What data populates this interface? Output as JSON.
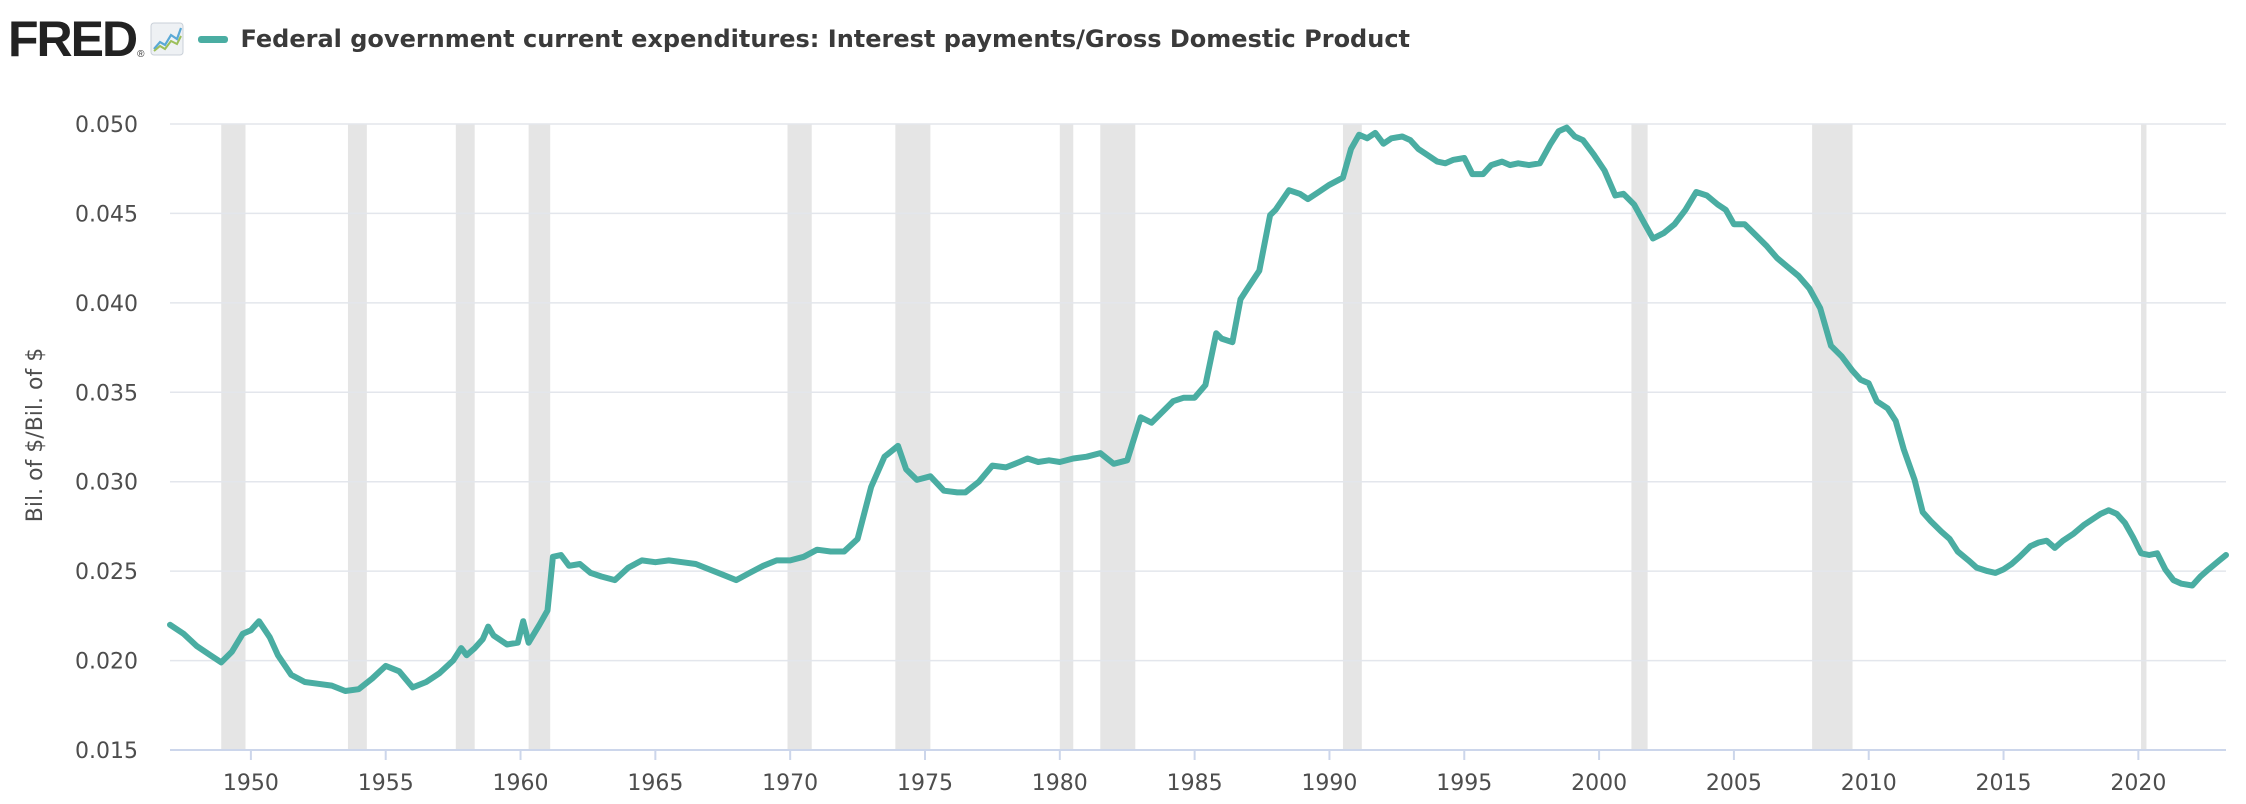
{
  "header": {
    "logo_text": "FRED",
    "logo_mark": "®",
    "logo_icon": "line-chart-icon"
  },
  "chart_data": {
    "type": "line",
    "title": "Federal government current expenditures: Interest payments/Gross Domestic Product",
    "ylabel": "Bil. of $/Bil. of $",
    "xlabel": "",
    "xlim": [
      1947,
      2023.25
    ],
    "ylim": [
      0.015,
      0.05
    ],
    "x_ticks": [
      1950,
      1955,
      1960,
      1965,
      1970,
      1975,
      1980,
      1985,
      1990,
      1995,
      2000,
      2005,
      2010,
      2015,
      2020
    ],
    "y_ticks": [
      "0.015",
      "0.020",
      "0.025",
      "0.030",
      "0.035",
      "0.040",
      "0.045",
      "0.050"
    ],
    "grid": "horizontal",
    "legend_placement": "top-left",
    "colors": {
      "series": "#4aada2",
      "recession": "#e5e5e5",
      "grid": "#e3e6ec",
      "axis": "#ccd6eb",
      "tick_text": "#4d4d4d"
    },
    "recessions": [
      [
        1948.9,
        1949.8
      ],
      [
        1953.6,
        1954.3
      ],
      [
        1957.6,
        1958.3
      ],
      [
        1960.3,
        1961.1
      ],
      [
        1969.9,
        1970.8
      ],
      [
        1973.9,
        1975.2
      ],
      [
        1980.0,
        1980.5
      ],
      [
        1981.5,
        1982.8
      ],
      [
        1990.5,
        1991.2
      ],
      [
        2001.2,
        2001.8
      ],
      [
        2007.9,
        2009.4
      ],
      [
        2020.1,
        2020.3
      ]
    ],
    "series": [
      {
        "name": "Federal government current expenditures: Interest payments/Gross Domestic Product",
        "points": [
          [
            1947.0,
            0.022
          ],
          [
            1947.5,
            0.0215
          ],
          [
            1948.0,
            0.0208
          ],
          [
            1948.5,
            0.0203
          ],
          [
            1948.9,
            0.0199
          ],
          [
            1949.3,
            0.0205
          ],
          [
            1949.7,
            0.0215
          ],
          [
            1950.0,
            0.0217
          ],
          [
            1950.3,
            0.0222
          ],
          [
            1950.7,
            0.0213
          ],
          [
            1951.0,
            0.0203
          ],
          [
            1951.5,
            0.0192
          ],
          [
            1952.0,
            0.0188
          ],
          [
            1952.5,
            0.0187
          ],
          [
            1953.0,
            0.0186
          ],
          [
            1953.5,
            0.0183
          ],
          [
            1954.0,
            0.0184
          ],
          [
            1954.5,
            0.019
          ],
          [
            1955.0,
            0.0197
          ],
          [
            1955.5,
            0.0194
          ],
          [
            1956.0,
            0.0185
          ],
          [
            1956.5,
            0.0188
          ],
          [
            1957.0,
            0.0193
          ],
          [
            1957.5,
            0.02
          ],
          [
            1957.8,
            0.0207
          ],
          [
            1958.0,
            0.0203
          ],
          [
            1958.3,
            0.0207
          ],
          [
            1958.6,
            0.0212
          ],
          [
            1958.8,
            0.0219
          ],
          [
            1959.0,
            0.0214
          ],
          [
            1959.5,
            0.0209
          ],
          [
            1959.9,
            0.021
          ],
          [
            1960.1,
            0.0222
          ],
          [
            1960.3,
            0.021
          ],
          [
            1960.7,
            0.022
          ],
          [
            1961.0,
            0.0228
          ],
          [
            1961.2,
            0.0258
          ],
          [
            1961.5,
            0.0259
          ],
          [
            1961.8,
            0.0253
          ],
          [
            1962.2,
            0.0254
          ],
          [
            1962.6,
            0.0249
          ],
          [
            1963.0,
            0.0247
          ],
          [
            1963.5,
            0.0245
          ],
          [
            1964.0,
            0.0252
          ],
          [
            1964.5,
            0.0256
          ],
          [
            1965.0,
            0.0255
          ],
          [
            1965.5,
            0.0256
          ],
          [
            1966.0,
            0.0255
          ],
          [
            1966.5,
            0.0254
          ],
          [
            1967.0,
            0.0251
          ],
          [
            1967.5,
            0.0248
          ],
          [
            1968.0,
            0.0245
          ],
          [
            1968.5,
            0.0249
          ],
          [
            1969.0,
            0.0253
          ],
          [
            1969.5,
            0.0256
          ],
          [
            1970.0,
            0.0256
          ],
          [
            1970.5,
            0.0258
          ],
          [
            1971.0,
            0.0262
          ],
          [
            1971.5,
            0.0261
          ],
          [
            1972.0,
            0.0261
          ],
          [
            1972.5,
            0.0268
          ],
          [
            1973.0,
            0.0297
          ],
          [
            1973.5,
            0.0314
          ],
          [
            1974.0,
            0.032
          ],
          [
            1974.3,
            0.0307
          ],
          [
            1974.7,
            0.0301
          ],
          [
            1975.2,
            0.0303
          ],
          [
            1975.7,
            0.0295
          ],
          [
            1976.2,
            0.0294
          ],
          [
            1976.5,
            0.0294
          ],
          [
            1977.0,
            0.03
          ],
          [
            1977.5,
            0.0309
          ],
          [
            1978.0,
            0.0308
          ],
          [
            1978.5,
            0.0311
          ],
          [
            1978.8,
            0.0313
          ],
          [
            1979.2,
            0.0311
          ],
          [
            1979.6,
            0.0312
          ],
          [
            1980.0,
            0.0311
          ],
          [
            1980.5,
            0.0313
          ],
          [
            1981.0,
            0.0314
          ],
          [
            1981.5,
            0.0316
          ],
          [
            1982.0,
            0.031
          ],
          [
            1982.5,
            0.0312
          ],
          [
            1983.0,
            0.0336
          ],
          [
            1983.4,
            0.0333
          ],
          [
            1983.8,
            0.0339
          ],
          [
            1984.2,
            0.0345
          ],
          [
            1984.6,
            0.0347
          ],
          [
            1985.0,
            0.0347
          ],
          [
            1985.4,
            0.0354
          ],
          [
            1985.8,
            0.0383
          ],
          [
            1986.0,
            0.038
          ],
          [
            1986.4,
            0.0378
          ],
          [
            1986.7,
            0.0402
          ],
          [
            1987.0,
            0.0409
          ],
          [
            1987.4,
            0.0418
          ],
          [
            1987.8,
            0.0449
          ],
          [
            1988.0,
            0.0452
          ],
          [
            1988.5,
            0.0463
          ],
          [
            1988.9,
            0.0461
          ],
          [
            1989.2,
            0.0458
          ],
          [
            1989.6,
            0.0462
          ],
          [
            1990.0,
            0.0466
          ],
          [
            1990.5,
            0.047
          ],
          [
            1990.8,
            0.0486
          ],
          [
            1991.1,
            0.0494
          ],
          [
            1991.4,
            0.0492
          ],
          [
            1991.7,
            0.0495
          ],
          [
            1992.0,
            0.0489
          ],
          [
            1992.3,
            0.0492
          ],
          [
            1992.7,
            0.0493
          ],
          [
            1993.0,
            0.0491
          ],
          [
            1993.3,
            0.0486
          ],
          [
            1993.6,
            0.0483
          ],
          [
            1994.0,
            0.0479
          ],
          [
            1994.3,
            0.0478
          ],
          [
            1994.6,
            0.048
          ],
          [
            1995.0,
            0.0481
          ],
          [
            1995.3,
            0.0472
          ],
          [
            1995.7,
            0.0472
          ],
          [
            1996.0,
            0.0477
          ],
          [
            1996.4,
            0.0479
          ],
          [
            1996.7,
            0.0477
          ],
          [
            1997.0,
            0.0478
          ],
          [
            1997.4,
            0.0477
          ],
          [
            1997.8,
            0.0478
          ],
          [
            1998.2,
            0.0489
          ],
          [
            1998.5,
            0.0496
          ],
          [
            1998.8,
            0.0498
          ],
          [
            1999.1,
            0.0493
          ],
          [
            1999.4,
            0.0491
          ],
          [
            1999.8,
            0.0483
          ],
          [
            2000.2,
            0.0474
          ],
          [
            2000.6,
            0.046
          ],
          [
            2000.9,
            0.0461
          ],
          [
            2001.3,
            0.0455
          ],
          [
            2001.7,
            0.0444
          ],
          [
            2002.0,
            0.0436
          ],
          [
            2002.4,
            0.0439
          ],
          [
            2002.8,
            0.0444
          ],
          [
            2003.2,
            0.0452
          ],
          [
            2003.6,
            0.0462
          ],
          [
            2004.0,
            0.046
          ],
          [
            2004.4,
            0.0455
          ],
          [
            2004.7,
            0.0452
          ],
          [
            2005.0,
            0.0444
          ],
          [
            2005.4,
            0.0444
          ],
          [
            2005.8,
            0.0438
          ],
          [
            2006.2,
            0.0432
          ],
          [
            2006.6,
            0.0425
          ],
          [
            2007.0,
            0.042
          ],
          [
            2007.4,
            0.0415
          ],
          [
            2007.8,
            0.0408
          ],
          [
            2008.2,
            0.0397
          ],
          [
            2008.6,
            0.0376
          ],
          [
            2009.0,
            0.037
          ],
          [
            2009.4,
            0.0362
          ],
          [
            2009.7,
            0.0357
          ],
          [
            2010.0,
            0.0355
          ],
          [
            2010.3,
            0.0345
          ],
          [
            2010.7,
            0.0341
          ],
          [
            2011.0,
            0.0334
          ],
          [
            2011.3,
            0.0318
          ],
          [
            2011.7,
            0.0301
          ],
          [
            2012.0,
            0.0283
          ],
          [
            2012.3,
            0.0278
          ],
          [
            2012.7,
            0.0272
          ],
          [
            2013.0,
            0.0268
          ],
          [
            2013.3,
            0.0261
          ],
          [
            2013.7,
            0.0256
          ],
          [
            2014.0,
            0.0252
          ],
          [
            2014.4,
            0.025
          ],
          [
            2014.7,
            0.0249
          ],
          [
            2015.0,
            0.0251
          ],
          [
            2015.3,
            0.0254
          ],
          [
            2015.6,
            0.0258
          ],
          [
            2016.0,
            0.0264
          ],
          [
            2016.3,
            0.0266
          ],
          [
            2016.6,
            0.0267
          ],
          [
            2016.9,
            0.0263
          ],
          [
            2017.2,
            0.0267
          ],
          [
            2017.6,
            0.0271
          ],
          [
            2018.0,
            0.0276
          ],
          [
            2018.3,
            0.0279
          ],
          [
            2018.6,
            0.0282
          ],
          [
            2018.9,
            0.0284
          ],
          [
            2019.2,
            0.0282
          ],
          [
            2019.5,
            0.0277
          ],
          [
            2019.8,
            0.0269
          ],
          [
            2020.1,
            0.026
          ],
          [
            2020.4,
            0.0259
          ],
          [
            2020.7,
            0.026
          ],
          [
            2021.0,
            0.0251
          ],
          [
            2021.3,
            0.0245
          ],
          [
            2021.6,
            0.0243
          ],
          [
            2022.0,
            0.0242
          ],
          [
            2022.3,
            0.0247
          ],
          [
            2022.6,
            0.0251
          ],
          [
            2023.0,
            0.0256
          ],
          [
            2023.25,
            0.0259
          ]
        ]
      }
    ]
  }
}
